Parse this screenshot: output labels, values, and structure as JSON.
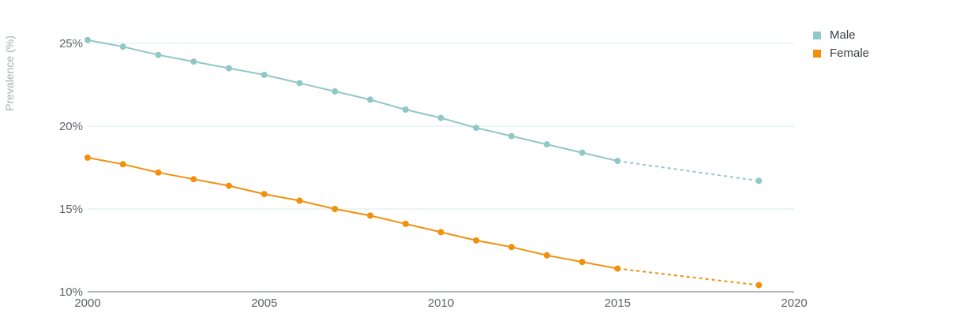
{
  "chart_data": {
    "type": "line",
    "title": "",
    "xlabel": "",
    "ylabel": "Prevalence (%)",
    "xlim": [
      2000,
      2020
    ],
    "ylim": [
      10,
      26
    ],
    "x_ticks": [
      2000,
      2005,
      2010,
      2015,
      2020
    ],
    "x_tick_labels": [
      "2000",
      "2005",
      "2010",
      "2015",
      "2020"
    ],
    "y_ticks": [
      10,
      15,
      20,
      25
    ],
    "y_tick_labels": [
      "10%",
      "15%",
      "20%",
      "25%"
    ],
    "grid": "horizontal",
    "legend_position": "top-right",
    "series": [
      {
        "name": "Male",
        "color": "#90c8c6",
        "x": [
          2000,
          2001,
          2002,
          2003,
          2004,
          2005,
          2006,
          2007,
          2008,
          2009,
          2010,
          2011,
          2012,
          2013,
          2014,
          2015
        ],
        "values": [
          25.2,
          24.8,
          24.3,
          23.9,
          23.5,
          23.1,
          22.6,
          22.1,
          21.6,
          21.0,
          20.5,
          19.9,
          19.4,
          18.9,
          18.4,
          17.9
        ],
        "projection": {
          "x": [
            2015,
            2019
          ],
          "values": [
            17.9,
            16.7
          ]
        }
      },
      {
        "name": "Female",
        "color": "#f0900c",
        "x": [
          2000,
          2001,
          2002,
          2003,
          2004,
          2005,
          2006,
          2007,
          2008,
          2009,
          2010,
          2011,
          2012,
          2013,
          2014,
          2015
        ],
        "values": [
          18.1,
          17.7,
          17.2,
          16.8,
          16.4,
          15.9,
          15.5,
          15.0,
          14.6,
          14.1,
          13.6,
          13.1,
          12.7,
          12.2,
          11.8,
          11.4
        ],
        "projection": {
          "x": [
            2015,
            2019
          ],
          "values": [
            11.4,
            10.4
          ]
        }
      }
    ]
  }
}
